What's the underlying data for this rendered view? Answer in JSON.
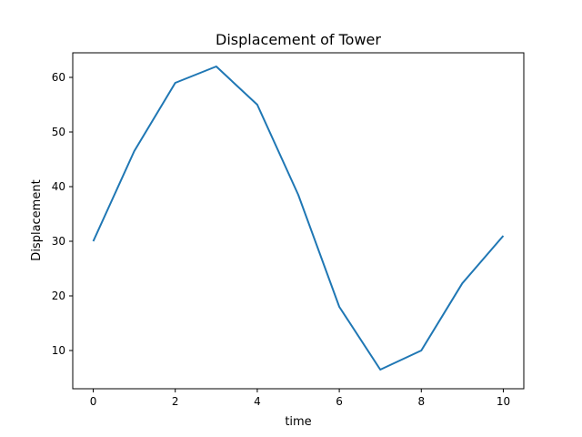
{
  "chart_data": {
    "type": "line",
    "title": "Displacement of Tower",
    "xlabel": "time",
    "ylabel": "Displacement",
    "xlim": [
      -0.5,
      10.5
    ],
    "ylim": [
      3,
      64.5
    ],
    "xticks": [
      0,
      2,
      4,
      6,
      8,
      10
    ],
    "yticks": [
      10,
      20,
      30,
      40,
      50,
      60
    ],
    "grid": false,
    "series": [
      {
        "x": [
          0,
          1,
          2,
          3,
          4,
          5,
          6,
          7,
          8,
          9,
          10
        ],
        "y": [
          30,
          46.5,
          59,
          62,
          55,
          38.5,
          18,
          6.5,
          10,
          22.3,
          31
        ],
        "color": "#1f77b4"
      }
    ]
  }
}
